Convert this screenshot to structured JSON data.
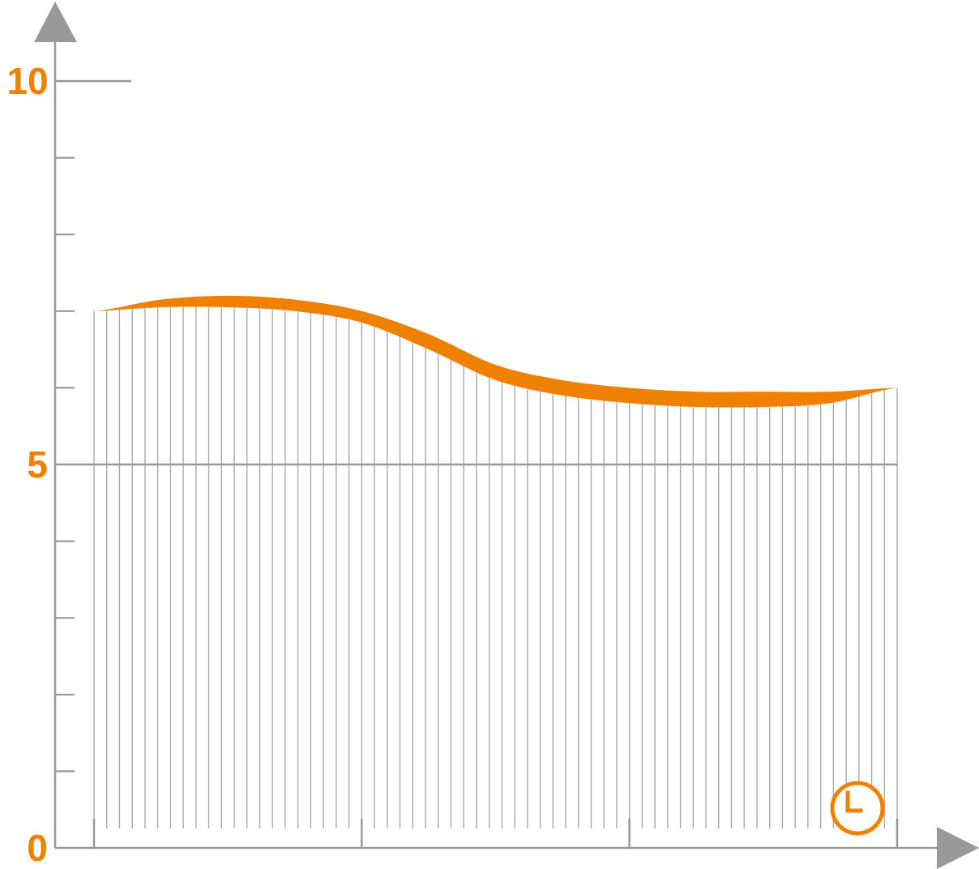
{
  "chart_data": {
    "type": "area",
    "title": "",
    "xlabel": "",
    "ylabel": "",
    "ylim": [
      0,
      10
    ],
    "y_labeled_ticks": [
      "0",
      "5",
      "10"
    ],
    "y_minor_step": 1,
    "x_range": [
      0,
      3
    ],
    "x_major_ticks": [
      0,
      1,
      2,
      3
    ],
    "series": [
      {
        "x": [
          0,
          0.25,
          0.5,
          0.75,
          1.0,
          1.25,
          1.5,
          1.75,
          2.0,
          2.25,
          2.5,
          2.75,
          3.0
        ],
        "upper": [
          7.0,
          7.15,
          7.2,
          7.15,
          7.0,
          6.7,
          6.3,
          6.1,
          6.0,
          5.95,
          5.95,
          5.95,
          6.0
        ],
        "lower": [
          7.0,
          7.05,
          7.05,
          7.0,
          6.85,
          6.5,
          6.1,
          5.9,
          5.8,
          5.75,
          5.75,
          5.8,
          6.0
        ]
      }
    ],
    "colors": {
      "axis": "#999999",
      "fill": "#f08000",
      "label": "#f08000",
      "hatch": "#aaaaaa"
    },
    "icons": {
      "x_axis": "clock-icon"
    }
  }
}
